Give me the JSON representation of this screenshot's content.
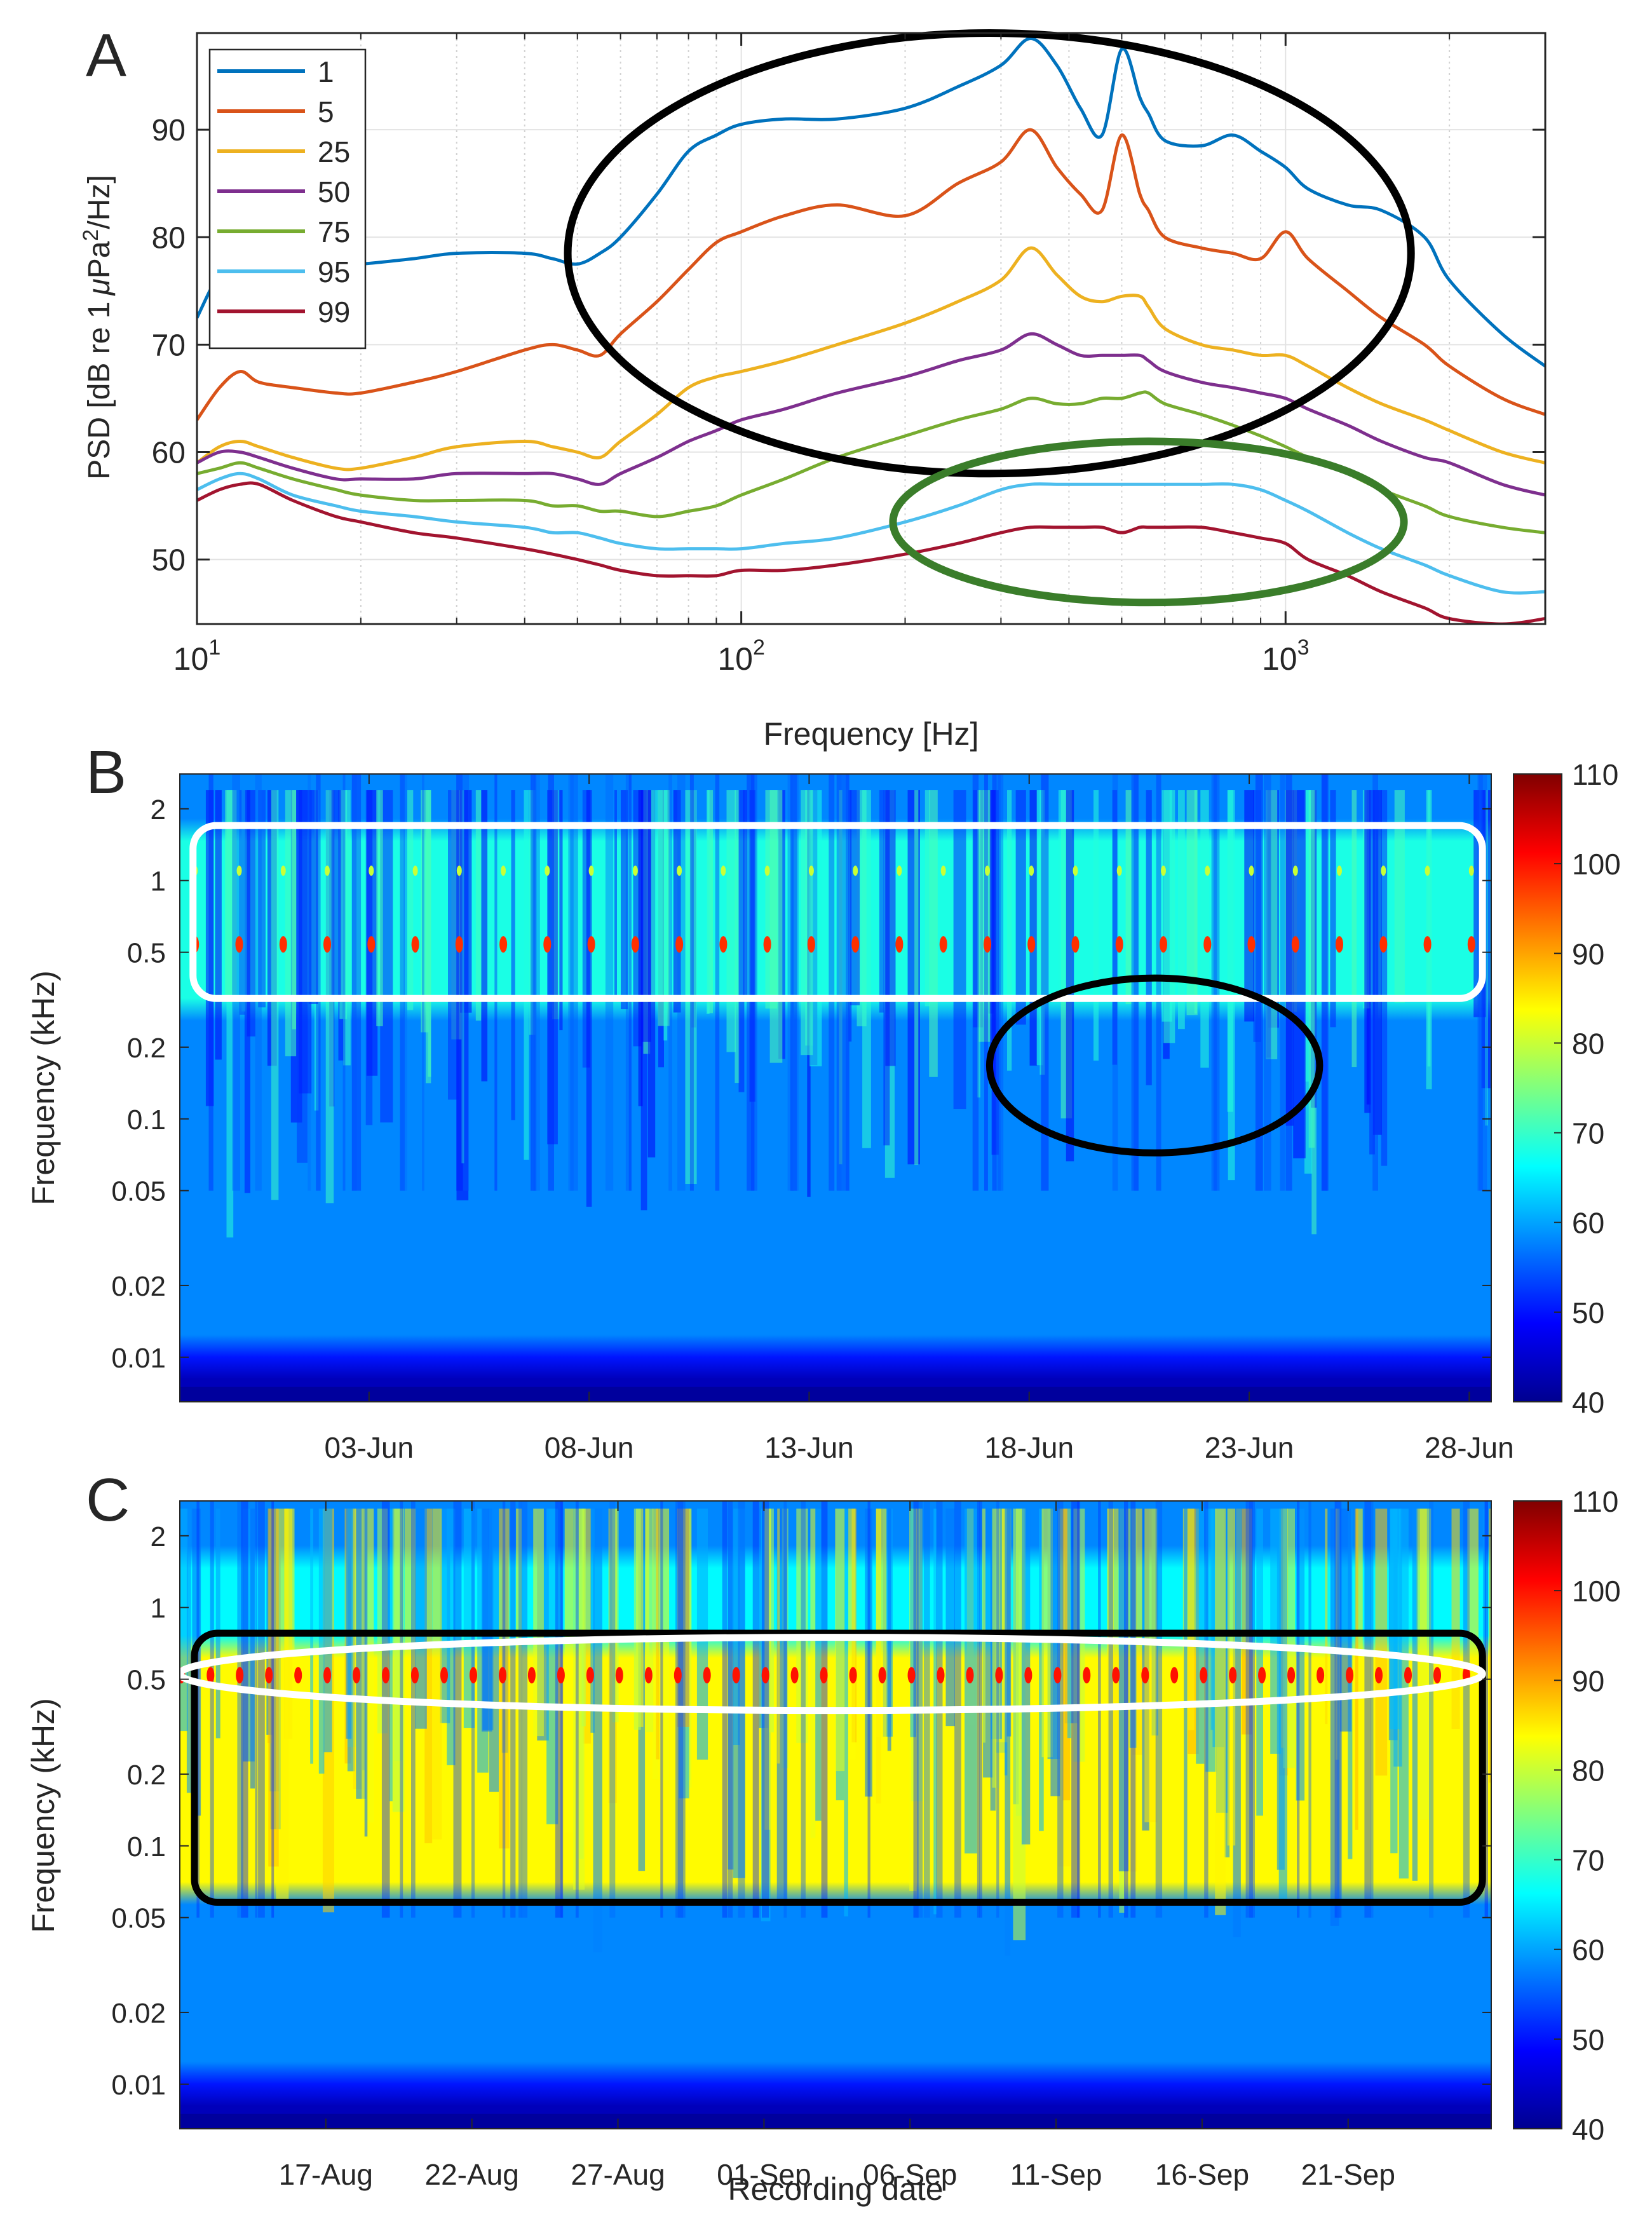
{
  "chart_data": [
    {
      "panel_label": "A",
      "type": "line",
      "xscale": "log",
      "xlabel": "Frequency [Hz]",
      "ylabel": "PSD [dB re 1 μPa²/Hz]",
      "ylabel_parts": {
        "prefix": "PSD [dB re 1",
        "mu": "μ",
        "unit": "Pa",
        "sup": "2",
        "suffix": "/Hz]"
      },
      "xlim": [
        10,
        3000
      ],
      "ylim": [
        44,
        99
      ],
      "x_ticks": [
        {
          "value": 10,
          "base": "10",
          "exp": "1"
        },
        {
          "value": 100,
          "base": "10",
          "exp": "2"
        },
        {
          "value": 1000,
          "base": "10",
          "exp": "3"
        }
      ],
      "y_ticks": [
        50,
        60,
        70,
        80,
        90
      ],
      "grid": true,
      "legend_position": "top-left",
      "annotations": [
        {
          "shape": "ellipse",
          "color": "#000000",
          "x_range": [
            48,
            1700
          ],
          "y_range": [
            58,
            99
          ]
        },
        {
          "shape": "ellipse",
          "color": "#3a7d2a",
          "x_range": [
            190,
            1650
          ],
          "y_range": [
            46,
            61
          ]
        }
      ],
      "x": [
        10,
        11,
        12,
        13,
        15,
        18,
        20,
        25,
        30,
        40,
        45,
        50,
        55,
        60,
        70,
        80,
        90,
        100,
        120,
        150,
        200,
        250,
        300,
        340,
        380,
        420,
        460,
        500,
        540,
        560,
        600,
        700,
        800,
        900,
        1000,
        1100,
        1300,
        1500,
        1800,
        2000,
        2500,
        3000
      ],
      "series": [
        {
          "name": "1",
          "color": "#0072BD",
          "values": [
            72.5,
            76.5,
            77,
            77,
            77,
            77.5,
            77.5,
            78,
            78.5,
            78.5,
            78,
            77.5,
            78.5,
            80,
            84,
            88,
            89.5,
            90.5,
            91,
            91,
            92,
            94,
            96,
            98.5,
            96,
            92,
            89.5,
            97.5,
            93,
            91.5,
            89,
            88.5,
            89.5,
            88,
            86.5,
            84.5,
            83,
            82.5,
            80,
            76,
            71,
            68
          ]
        },
        {
          "name": "5",
          "color": "#D95319",
          "values": [
            63,
            66,
            67.5,
            66.5,
            66,
            65.5,
            65.5,
            66.5,
            67.5,
            69.5,
            70,
            69.5,
            69,
            71,
            74,
            77,
            79.5,
            80.5,
            82,
            83,
            82,
            85,
            87,
            90,
            86.5,
            84,
            82.5,
            89.5,
            84,
            82.5,
            80,
            79,
            78.5,
            78,
            80.5,
            78,
            75,
            72.5,
            70,
            68,
            65,
            63.5
          ]
        },
        {
          "name": "25",
          "color": "#EDB120",
          "values": [
            59,
            60.5,
            61,
            60.5,
            59.5,
            58.5,
            58.5,
            59.5,
            60.5,
            61,
            60.5,
            60,
            59.5,
            61,
            63.5,
            66,
            67,
            67.5,
            68.5,
            70,
            72,
            74,
            76,
            79,
            76.5,
            74.5,
            74,
            74.5,
            74.5,
            73.5,
            71.5,
            70,
            69.5,
            69,
            69,
            68,
            66,
            64.5,
            63,
            62,
            60,
            59
          ]
        },
        {
          "name": "50",
          "color": "#7E2F8E",
          "values": [
            59,
            60,
            60,
            59.5,
            58.5,
            57.5,
            57.5,
            57.5,
            58,
            58,
            58,
            57.5,
            57,
            58,
            59.5,
            61,
            62,
            63,
            64,
            65.5,
            67,
            68.5,
            69.5,
            71,
            70,
            69,
            69,
            69,
            69,
            68.5,
            67.5,
            66.5,
            66,
            65.5,
            65,
            64,
            62.5,
            61,
            59.5,
            59,
            57,
            56
          ]
        },
        {
          "name": "75",
          "color": "#77AC30",
          "values": [
            58,
            58.5,
            59,
            58.5,
            57.5,
            56.5,
            56,
            55.5,
            55.5,
            55.5,
            55,
            55,
            54.5,
            54.5,
            54,
            54.5,
            55,
            56,
            57.5,
            59.5,
            61.5,
            63,
            64,
            65,
            64.5,
            64.5,
            65,
            65,
            65.5,
            65.5,
            64.5,
            63.5,
            62.5,
            61.5,
            60.5,
            59.5,
            58,
            56.5,
            55,
            54,
            53,
            52.5
          ]
        },
        {
          "name": "95",
          "color": "#4DBEEE",
          "values": [
            56.5,
            57.5,
            58,
            57.5,
            56,
            55,
            54.5,
            54,
            53.5,
            53,
            52.5,
            52.5,
            52,
            51.5,
            51,
            51,
            51,
            51,
            51.5,
            52,
            53.5,
            55,
            56.5,
            57,
            57,
            57,
            57,
            57,
            57,
            57,
            57,
            57,
            57,
            56.5,
            55.5,
            54.5,
            52.5,
            51,
            49.5,
            48.5,
            47,
            47
          ]
        },
        {
          "name": "99",
          "color": "#A2142F",
          "values": [
            55.5,
            56.5,
            57,
            57,
            55.5,
            54,
            53.5,
            52.5,
            52,
            51,
            50.5,
            50,
            49.5,
            49,
            48.5,
            48.5,
            48.5,
            49,
            49,
            49.5,
            50.5,
            51.5,
            52.5,
            53,
            53,
            53,
            53,
            52.5,
            53,
            53,
            53,
            53,
            52.5,
            52,
            51.5,
            50,
            48.5,
            47,
            45.5,
            44.5,
            44,
            44.5
          ]
        }
      ]
    },
    {
      "panel_label": "B",
      "type": "heatmap",
      "ylabel": "Frequency (kHz)",
      "yscale": "log",
      "y_ticks": [
        "2",
        "1",
        "0.5",
        "0.2",
        "0.1",
        "0.05",
        "0.02",
        "0.01"
      ],
      "y_tick_values": [
        2,
        1,
        0.5,
        0.2,
        0.1,
        0.05,
        0.02,
        0.01
      ],
      "ylim": [
        0.0065,
        2.8
      ],
      "x_ticks": [
        "03-Jun",
        "08-Jun",
        "13-Jun",
        "18-Jun",
        "23-Jun",
        "28-Jun"
      ],
      "x_start_day": 29.7,
      "x_end_day": 59.5,
      "x_tick_days": [
        34,
        39,
        44,
        49,
        54,
        59
      ],
      "colorbar": {
        "min": 40,
        "max": 110,
        "ticks": [
          40,
          50,
          60,
          70,
          80,
          90,
          100,
          110
        ],
        "colormap": "jet"
      },
      "annotations": [
        {
          "shape": "rounded-rectangle",
          "color": "#ffffff",
          "x_days": [
            30.0,
            59.3
          ],
          "y_range_khz": [
            0.32,
            1.7
          ]
        },
        {
          "shape": "ellipse",
          "color": "#000000",
          "x_days": [
            48.1,
            55.6
          ],
          "y_range_khz": [
            0.072,
            0.39
          ]
        }
      ],
      "features": {
        "tonal_khz": 0.54,
        "harmonic_khz": 1.1,
        "band_level_dB": 68,
        "low_band_level_dB": 44
      }
    },
    {
      "panel_label": "C",
      "type": "heatmap",
      "ylabel": "Frequency (kHz)",
      "xlabel": "Recording date",
      "yscale": "log",
      "y_ticks": [
        "2",
        "1",
        "0.5",
        "0.2",
        "0.1",
        "0.05",
        "0.02",
        "0.01"
      ],
      "y_tick_values": [
        2,
        1,
        0.5,
        0.2,
        0.1,
        0.05,
        0.02,
        0.01
      ],
      "ylim": [
        0.0065,
        2.8
      ],
      "x_ticks": [
        "17-Aug",
        "22-Aug",
        "27-Aug",
        "01-Sep",
        "06-Sep",
        "11-Sep",
        "16-Sep",
        "21-Sep"
      ],
      "x_start_day": 224.0,
      "x_end_day": 268.9,
      "x_tick_days": [
        229,
        234,
        239,
        244,
        249,
        254,
        259,
        264
      ],
      "colorbar": {
        "min": 40,
        "max": 110,
        "ticks": [
          40,
          50,
          60,
          70,
          80,
          90,
          100,
          110
        ],
        "colormap": "jet"
      },
      "annotations": [
        {
          "shape": "rounded-rectangle",
          "color": "#000000",
          "x_days": [
            224.5,
            268.6
          ],
          "y_range_khz": [
            0.058,
            0.78
          ]
        },
        {
          "shape": "ellipse",
          "color": "#ffffff",
          "x_days": [
            224.0,
            268.6
          ],
          "y_range_khz": [
            0.37,
            0.75
          ]
        }
      ],
      "features": {
        "tonal_khz": 0.52,
        "band_level_dB": 84,
        "low_band_level_dB": 44
      }
    }
  ]
}
